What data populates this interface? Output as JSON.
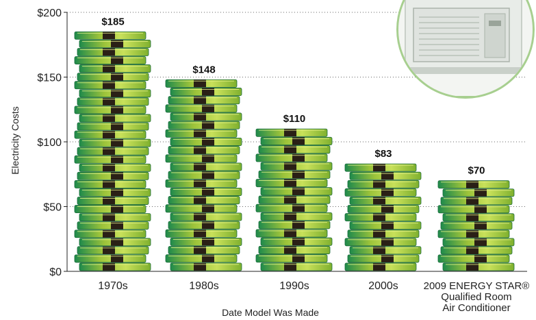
{
  "chart_data": {
    "type": "bar",
    "categories": [
      "1970s",
      "1980s",
      "1990s",
      "2000s",
      "2009 ENERGY STAR® Qualified Room Air Conditioner"
    ],
    "category_lines": [
      [
        "1970s"
      ],
      [
        "1980s"
      ],
      [
        "1990s"
      ],
      [
        "2000s"
      ],
      [
        "2009 ENERGY STAR®",
        "Qualified Room",
        "Air Conditioner"
      ]
    ],
    "values": [
      185,
      148,
      110,
      83,
      70
    ],
    "value_labels": [
      "$185",
      "$148",
      "$110",
      "$83",
      "$70"
    ],
    "xlabel": "Date Model Was Made",
    "ylabel": "Electricity Costs",
    "ylim": [
      0,
      200
    ],
    "yticks": [
      0,
      50,
      100,
      150,
      200
    ],
    "ytick_labels": [
      "$0",
      "$50",
      "$100",
      "$150",
      "$200"
    ],
    "grid": "dotted horizontal",
    "bar_style": "stacked money bundles",
    "colors": {
      "bill_light": "#c8e05a",
      "bill_mid": "#9cc33a",
      "bill_dark": "#1f8a4c",
      "band": "#2a2016",
      "inset_border": "#a7cf8f"
    },
    "inset_icon": "window-air-conditioner-icon"
  }
}
